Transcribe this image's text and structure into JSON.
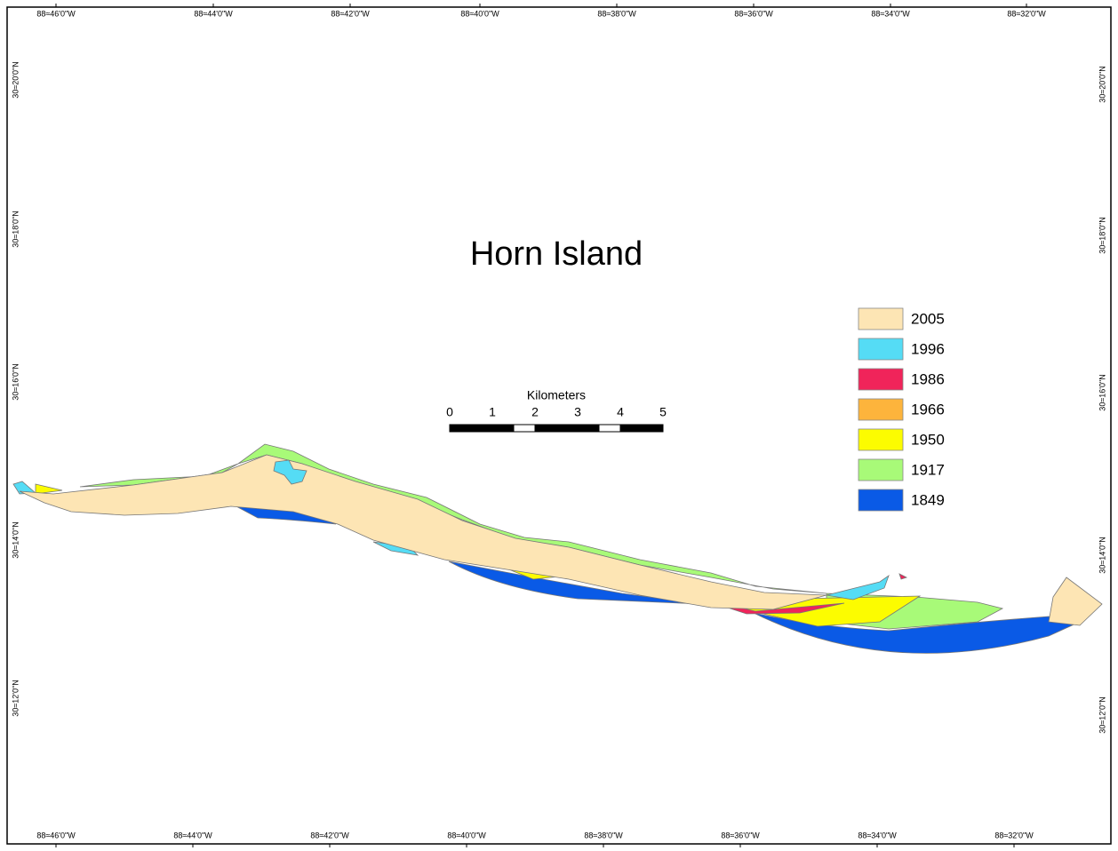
{
  "title": "Horn Island",
  "legend": [
    {
      "label": "2005",
      "color": "#fde5b4"
    },
    {
      "label": "1996",
      "color": "#55dcf5"
    },
    {
      "label": "1986",
      "color": "#f0245a"
    },
    {
      "label": "1966",
      "color": "#fdb43c"
    },
    {
      "label": "1950",
      "color": "#fcfc00"
    },
    {
      "label": "1917",
      "color": "#a8fa78"
    },
    {
      "label": "1849",
      "color": "#0a5ae6"
    }
  ],
  "scale_bar": {
    "label": "Kilometers",
    "ticks": [
      0,
      1,
      2,
      3,
      4,
      5
    ]
  },
  "top_labels": [
    "88≈46'0\"W",
    "88≈44'0\"W",
    "88≈42'0\"W",
    "88≈40'0\"W",
    "88≈38'0\"W",
    "88≈36'0\"W",
    "88≈34'0\"W",
    "88≈32'0\"W"
  ],
  "bottom_labels": [
    "88≈46'0\"W",
    "88≈44'0\"W",
    "88≈42'0\"W",
    "88≈40'0\"W",
    "88≈38'0\"W",
    "88≈36'0\"W",
    "88≈34'0\"W",
    "88≈32'0\"W"
  ],
  "left_labels": [
    "30≈20'0\"N",
    "30≈18'0\"N",
    "30≈16'0\"N",
    "30≈14'0\"N",
    "30≈12'0\"N"
  ],
  "right_labels": [
    "30≈20'0\"N",
    "30≈18'0\"N",
    "30≈16'0\"N",
    "30≈14'0\"N",
    "30≈12'0\"N"
  ]
}
